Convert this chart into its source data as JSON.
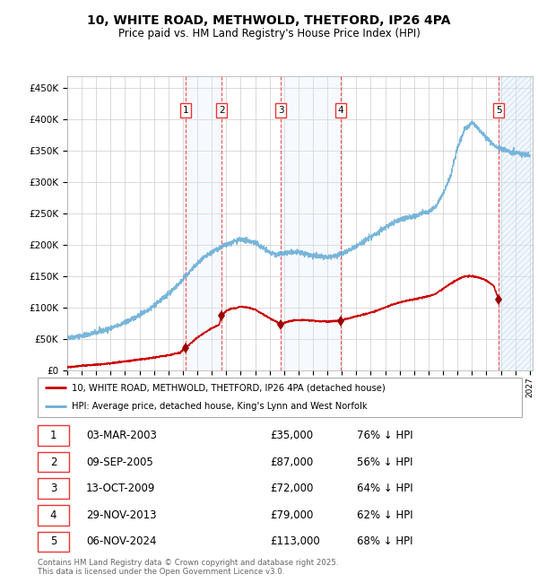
{
  "title": "10, WHITE ROAD, METHWOLD, THETFORD, IP26 4PA",
  "subtitle": "Price paid vs. HM Land Registry's House Price Index (HPI)",
  "ylim": [
    0,
    470000
  ],
  "yticks": [
    0,
    50000,
    100000,
    150000,
    200000,
    250000,
    300000,
    350000,
    400000,
    450000
  ],
  "ytick_labels": [
    "£0",
    "£50K",
    "£100K",
    "£150K",
    "£200K",
    "£250K",
    "£300K",
    "£350K",
    "£400K",
    "£450K"
  ],
  "hpi_color": "#6aaed6",
  "price_color": "#cc0000",
  "sale_marker_color": "#990000",
  "vline_color": "#ee3333",
  "shade_color": "#ddeeff",
  "legend_label_price": "10, WHITE ROAD, METHWOLD, THETFORD, IP26 4PA (detached house)",
  "legend_label_hpi": "HPI: Average price, detached house, King's Lynn and West Norfolk",
  "footnote": "Contains HM Land Registry data © Crown copyright and database right 2025.\nThis data is licensed under the Open Government Licence v3.0.",
  "sales": [
    {
      "num": 1,
      "date": "03-MAR-2003",
      "year": 2003.17,
      "price": 35000,
      "pct": "76%",
      "label": "1"
    },
    {
      "num": 2,
      "date": "09-SEP-2005",
      "year": 2005.69,
      "price": 87000,
      "pct": "56%",
      "label": "2"
    },
    {
      "num": 3,
      "date": "13-OCT-2009",
      "year": 2009.79,
      "price": 72000,
      "pct": "64%",
      "label": "3"
    },
    {
      "num": 4,
      "date": "29-NOV-2013",
      "year": 2013.91,
      "price": 79000,
      "pct": "62%",
      "label": "4"
    },
    {
      "num": 5,
      "date": "06-NOV-2024",
      "year": 2024.85,
      "price": 113000,
      "pct": "68%",
      "label": "5"
    }
  ],
  "table_rows": [
    {
      "num": "1",
      "date": "03-MAR-2003",
      "price": "£35,000",
      "pct": "76% ↓ HPI"
    },
    {
      "num": "2",
      "date": "09-SEP-2005",
      "price": "£87,000",
      "pct": "56% ↓ HPI"
    },
    {
      "num": "3",
      "date": "13-OCT-2009",
      "price": "£72,000",
      "pct": "64% ↓ HPI"
    },
    {
      "num": "4",
      "date": "29-NOV-2013",
      "price": "£79,000",
      "pct": "62% ↓ HPI"
    },
    {
      "num": "5",
      "date": "06-NOV-2024",
      "price": "£113,000",
      "pct": "68% ↓ HPI"
    }
  ],
  "hpi_anchors_x": [
    1995.0,
    1995.5,
    1996.0,
    1996.5,
    1997.0,
    1997.5,
    1998.0,
    1998.5,
    1999.0,
    1999.5,
    2000.0,
    2000.5,
    2001.0,
    2001.5,
    2002.0,
    2002.5,
    2003.0,
    2003.5,
    2004.0,
    2004.5,
    2005.0,
    2005.5,
    2006.0,
    2006.5,
    2007.0,
    2007.5,
    2008.0,
    2008.5,
    2009.0,
    2009.5,
    2010.0,
    2010.5,
    2011.0,
    2011.5,
    2012.0,
    2012.5,
    2013.0,
    2013.5,
    2014.0,
    2014.5,
    2015.0,
    2015.5,
    2016.0,
    2016.5,
    2017.0,
    2017.5,
    2018.0,
    2018.5,
    2019.0,
    2019.5,
    2020.0,
    2020.5,
    2021.0,
    2021.5,
    2022.0,
    2022.5,
    2023.0,
    2023.5,
    2024.0,
    2024.5,
    2025.0,
    2025.5,
    2026.0,
    2026.5,
    2027.0
  ],
  "hpi_anchors_y": [
    52000,
    53000,
    55000,
    57000,
    60000,
    63000,
    67000,
    71000,
    76000,
    82000,
    88000,
    95000,
    103000,
    112000,
    122000,
    133000,
    145000,
    158000,
    170000,
    180000,
    188000,
    195000,
    200000,
    205000,
    208000,
    207000,
    203000,
    196000,
    188000,
    185000,
    186000,
    188000,
    188000,
    186000,
    183000,
    181000,
    180000,
    182000,
    186000,
    192000,
    198000,
    205000,
    213000,
    220000,
    228000,
    235000,
    240000,
    243000,
    246000,
    250000,
    253000,
    262000,
    282000,
    308000,
    355000,
    385000,
    395000,
    385000,
    370000,
    360000,
    353000,
    350000,
    347000,
    345000,
    343000
  ],
  "price_anchors_x": [
    1995.0,
    1996.0,
    1997.0,
    1998.0,
    1999.0,
    2000.0,
    2001.0,
    2002.0,
    2002.8,
    2003.17,
    2003.5,
    2004.0,
    2004.5,
    2005.0,
    2005.5,
    2005.69,
    2006.0,
    2006.3,
    2006.8,
    2007.0,
    2007.5,
    2008.0,
    2008.5,
    2009.0,
    2009.5,
    2009.79,
    2010.0,
    2010.5,
    2011.0,
    2011.5,
    2012.0,
    2012.5,
    2013.0,
    2013.5,
    2013.91,
    2014.0,
    2014.5,
    2015.0,
    2015.5,
    2016.0,
    2016.5,
    2017.0,
    2017.5,
    2018.0,
    2018.5,
    2019.0,
    2019.5,
    2020.0,
    2020.5,
    2021.0,
    2021.5,
    2022.0,
    2022.5,
    2023.0,
    2023.5,
    2024.0,
    2024.5,
    2024.85,
    2025.0
  ],
  "price_anchors_y": [
    5000,
    7000,
    9000,
    11000,
    14000,
    17000,
    20000,
    24000,
    28000,
    35000,
    42000,
    52000,
    60000,
    67000,
    72000,
    87000,
    95000,
    98000,
    100000,
    102000,
    100000,
    97000,
    90000,
    83000,
    77000,
    72000,
    76000,
    79000,
    80000,
    80000,
    79000,
    78000,
    78000,
    78500,
    79000,
    80000,
    83000,
    86000,
    89000,
    92000,
    96000,
    100000,
    105000,
    108000,
    111000,
    113000,
    116000,
    118000,
    122000,
    130000,
    138000,
    145000,
    150000,
    150000,
    148000,
    143000,
    135000,
    113000,
    113000
  ]
}
